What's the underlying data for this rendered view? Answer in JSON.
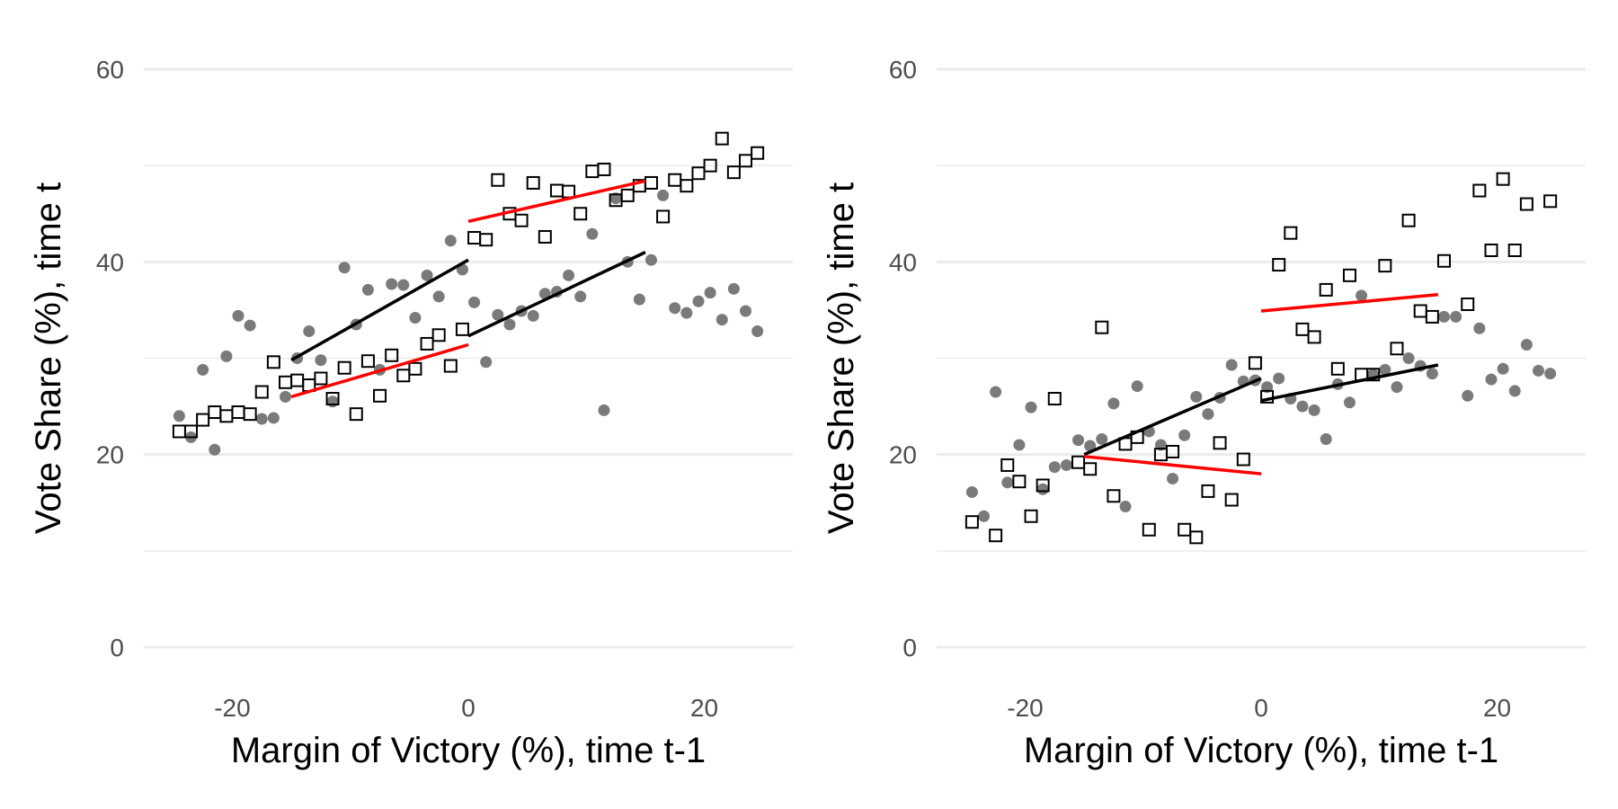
{
  "chart_data": [
    {
      "type": "scatter",
      "xlabel": "Margin of Victory (%), time t-1",
      "ylabel": "Vote Share (%), time t",
      "xlim": [
        -27.5,
        27.5
      ],
      "ylim": [
        0,
        60
      ],
      "xticks": [
        -20,
        0,
        20
      ],
      "yticks": [
        0,
        20,
        40,
        60
      ],
      "xtick_labels": [
        "-20",
        "0",
        "20"
      ],
      "ytick_labels": [
        "0",
        "20",
        "40",
        "60"
      ],
      "grid": true,
      "series": [
        {
          "marker": "filled-circle",
          "color": "#7a7a7a",
          "points": [
            [
              -24.5,
              24.0
            ],
            [
              -23.5,
              21.8
            ],
            [
              -22.5,
              28.8
            ],
            [
              -21.5,
              20.5
            ],
            [
              -20.5,
              30.2
            ],
            [
              -19.5,
              34.4
            ],
            [
              -18.5,
              33.4
            ],
            [
              -17.5,
              23.7
            ],
            [
              -16.5,
              23.8
            ],
            [
              -15.5,
              26.0
            ],
            [
              -14.5,
              30.0
            ],
            [
              -13.5,
              32.8
            ],
            [
              -12.5,
              29.8
            ],
            [
              -11.5,
              25.5
            ],
            [
              -10.5,
              39.4
            ],
            [
              -9.5,
              33.5
            ],
            [
              -8.5,
              37.1
            ],
            [
              -7.5,
              28.8
            ],
            [
              -6.5,
              37.7
            ],
            [
              -5.5,
              37.6
            ],
            [
              -4.5,
              34.2
            ],
            [
              -3.5,
              38.6
            ],
            [
              -2.5,
              36.4
            ],
            [
              -1.5,
              42.2
            ],
            [
              -0.5,
              39.2
            ],
            [
              0.5,
              35.8
            ],
            [
              1.5,
              29.6
            ],
            [
              2.5,
              34.5
            ],
            [
              3.5,
              33.5
            ],
            [
              4.5,
              34.9
            ],
            [
              5.5,
              34.4
            ],
            [
              6.5,
              36.7
            ],
            [
              7.5,
              36.9
            ],
            [
              8.5,
              38.6
            ],
            [
              9.5,
              36.4
            ],
            [
              10.5,
              42.9
            ],
            [
              11.5,
              24.6
            ],
            [
              12.5,
              46.6
            ],
            [
              13.5,
              40.0
            ],
            [
              14.5,
              36.1
            ],
            [
              15.5,
              40.2
            ],
            [
              16.5,
              46.9
            ],
            [
              17.5,
              35.2
            ],
            [
              18.5,
              34.7
            ],
            [
              19.5,
              35.9
            ],
            [
              20.5,
              36.8
            ],
            [
              21.5,
              34.0
            ],
            [
              22.5,
              37.2
            ],
            [
              23.5,
              34.9
            ],
            [
              24.5,
              32.8
            ]
          ]
        },
        {
          "marker": "open-square",
          "color": "#000000",
          "points": [
            [
              -24.5,
              22.4
            ],
            [
              -23.5,
              22.4
            ],
            [
              -22.5,
              23.6
            ],
            [
              -21.5,
              24.4
            ],
            [
              -20.5,
              24.0
            ],
            [
              -19.5,
              24.4
            ],
            [
              -18.5,
              24.2
            ],
            [
              -17.5,
              26.5
            ],
            [
              -16.5,
              29.6
            ],
            [
              -15.5,
              27.5
            ],
            [
              -14.5,
              27.7
            ],
            [
              -13.5,
              27.2
            ],
            [
              -12.5,
              27.9
            ],
            [
              -11.5,
              25.8
            ],
            [
              -10.5,
              29.0
            ],
            [
              -9.5,
              24.2
            ],
            [
              -8.5,
              29.7
            ],
            [
              -7.5,
              26.1
            ],
            [
              -6.5,
              30.3
            ],
            [
              -5.5,
              28.2
            ],
            [
              -4.5,
              28.9
            ],
            [
              -3.5,
              31.5
            ],
            [
              -2.5,
              32.4
            ],
            [
              -1.5,
              29.2
            ],
            [
              -0.5,
              33.0
            ],
            [
              0.5,
              42.5
            ],
            [
              1.5,
              42.3
            ],
            [
              2.5,
              48.5
            ],
            [
              3.5,
              45.0
            ],
            [
              4.5,
              44.3
            ],
            [
              5.5,
              48.2
            ],
            [
              6.5,
              42.6
            ],
            [
              7.5,
              47.4
            ],
            [
              8.5,
              47.3
            ],
            [
              9.5,
              45.0
            ],
            [
              10.5,
              49.4
            ],
            [
              11.5,
              49.6
            ],
            [
              12.5,
              46.4
            ],
            [
              13.5,
              46.9
            ],
            [
              14.5,
              47.9
            ],
            [
              15.5,
              48.2
            ],
            [
              16.5,
              44.7
            ],
            [
              17.5,
              48.5
            ],
            [
              18.5,
              47.9
            ],
            [
              19.5,
              49.2
            ],
            [
              20.5,
              50.0
            ],
            [
              21.5,
              52.8
            ],
            [
              22.5,
              49.3
            ],
            [
              23.5,
              50.5
            ],
            [
              24.5,
              51.3
            ]
          ]
        }
      ],
      "fit_lines": [
        {
          "color": "#000000",
          "x": [
            -15,
            0
          ],
          "y": [
            29.8,
            40.2
          ]
        },
        {
          "color": "#000000",
          "x": [
            0,
            15
          ],
          "y": [
            32.3,
            41.0
          ]
        },
        {
          "color": "#ff0000",
          "x": [
            -15,
            0
          ],
          "y": [
            26.0,
            31.4
          ]
        },
        {
          "color": "#ff0000",
          "x": [
            0,
            15
          ],
          "y": [
            44.2,
            48.4
          ]
        }
      ]
    },
    {
      "type": "scatter",
      "xlabel": "Margin of Victory (%), time t-1",
      "ylabel": "Vote Share (%), time t",
      "xlim": [
        -27.5,
        27.5
      ],
      "ylim": [
        0,
        60
      ],
      "xticks": [
        -20,
        0,
        20
      ],
      "yticks": [
        0,
        20,
        40,
        60
      ],
      "xtick_labels": [
        "-20",
        "0",
        "20"
      ],
      "ytick_labels": [
        "0",
        "20",
        "40",
        "60"
      ],
      "grid": true,
      "series": [
        {
          "marker": "filled-circle",
          "color": "#7a7a7a",
          "points": [
            [
              -24.5,
              16.1
            ],
            [
              -23.5,
              13.6
            ],
            [
              -22.5,
              26.5
            ],
            [
              -21.5,
              17.1
            ],
            [
              -20.5,
              21.0
            ],
            [
              -19.5,
              24.9
            ],
            [
              -18.5,
              16.4
            ],
            [
              -17.5,
              18.7
            ],
            [
              -16.5,
              18.9
            ],
            [
              -15.5,
              21.5
            ],
            [
              -14.5,
              20.9
            ],
            [
              -13.5,
              21.6
            ],
            [
              -12.5,
              25.3
            ],
            [
              -11.5,
              14.6
            ],
            [
              -10.5,
              27.1
            ],
            [
              -9.5,
              22.4
            ],
            [
              -8.5,
              21.0
            ],
            [
              -7.5,
              17.5
            ],
            [
              -6.5,
              22.0
            ],
            [
              -5.5,
              26.0
            ],
            [
              -4.5,
              24.2
            ],
            [
              -3.5,
              25.9
            ],
            [
              -2.5,
              29.3
            ],
            [
              -1.5,
              27.6
            ],
            [
              -0.5,
              27.7
            ],
            [
              0.5,
              27.0
            ],
            [
              1.5,
              27.9
            ],
            [
              2.5,
              25.8
            ],
            [
              3.5,
              25.0
            ],
            [
              4.5,
              24.6
            ],
            [
              5.5,
              21.6
            ],
            [
              6.5,
              27.3
            ],
            [
              7.5,
              25.4
            ],
            [
              8.5,
              36.5
            ],
            [
              9.5,
              28.3
            ],
            [
              10.5,
              28.8
            ],
            [
              11.5,
              27.0
            ],
            [
              12.5,
              30.0
            ],
            [
              13.5,
              29.2
            ],
            [
              14.5,
              28.4
            ],
            [
              15.5,
              34.3
            ],
            [
              16.5,
              34.3
            ],
            [
              17.5,
              26.1
            ],
            [
              18.5,
              33.1
            ],
            [
              19.5,
              27.8
            ],
            [
              20.5,
              28.9
            ],
            [
              21.5,
              26.6
            ],
            [
              22.5,
              31.4
            ],
            [
              23.5,
              28.7
            ],
            [
              24.5,
              28.4
            ]
          ]
        },
        {
          "marker": "open-square",
          "color": "#000000",
          "points": [
            [
              -24.5,
              13.0
            ],
            [
              -22.5,
              11.6
            ],
            [
              -21.5,
              18.9
            ],
            [
              -20.5,
              17.2
            ],
            [
              -19.5,
              13.6
            ],
            [
              -18.5,
              16.8
            ],
            [
              -17.5,
              25.8
            ],
            [
              -15.5,
              19.2
            ],
            [
              -14.5,
              18.5
            ],
            [
              -13.5,
              33.2
            ],
            [
              -12.5,
              15.7
            ],
            [
              -11.5,
              21.1
            ],
            [
              -10.5,
              21.8
            ],
            [
              -9.5,
              12.2
            ],
            [
              -8.5,
              20.0
            ],
            [
              -7.5,
              20.3
            ],
            [
              -6.5,
              12.2
            ],
            [
              -5.5,
              11.4
            ],
            [
              -4.5,
              16.2
            ],
            [
              -3.5,
              21.2
            ],
            [
              -2.5,
              15.3
            ],
            [
              -1.5,
              19.5
            ],
            [
              -0.5,
              29.5
            ],
            [
              0.5,
              26.0
            ],
            [
              1.5,
              39.7
            ],
            [
              2.5,
              43.0
            ],
            [
              3.5,
              33.0
            ],
            [
              4.5,
              32.2
            ],
            [
              5.5,
              37.1
            ],
            [
              7.5,
              38.6
            ],
            [
              8.5,
              28.3
            ],
            [
              10.5,
              39.6
            ],
            [
              11.5,
              31.0
            ],
            [
              12.5,
              44.3
            ],
            [
              13.5,
              34.9
            ],
            [
              14.5,
              34.3
            ],
            [
              15.5,
              40.1
            ],
            [
              17.5,
              35.6
            ],
            [
              18.5,
              47.4
            ],
            [
              19.5,
              41.2
            ],
            [
              20.5,
              48.6
            ],
            [
              21.5,
              41.2
            ],
            [
              22.5,
              46.0
            ],
            [
              24.5,
              46.3
            ],
            [
              6.5,
              28.9
            ],
            [
              9.5,
              28.3
            ]
          ]
        }
      ],
      "fit_lines": [
        {
          "color": "#000000",
          "x": [
            -15,
            0
          ],
          "y": [
            20.0,
            27.9
          ]
        },
        {
          "color": "#000000",
          "x": [
            0,
            15
          ],
          "y": [
            25.6,
            29.3
          ]
        },
        {
          "color": "#ff0000",
          "x": [
            -15,
            0
          ],
          "y": [
            19.8,
            18.0
          ]
        },
        {
          "color": "#ff0000",
          "x": [
            0,
            15
          ],
          "y": [
            34.9,
            36.6
          ]
        }
      ]
    }
  ]
}
